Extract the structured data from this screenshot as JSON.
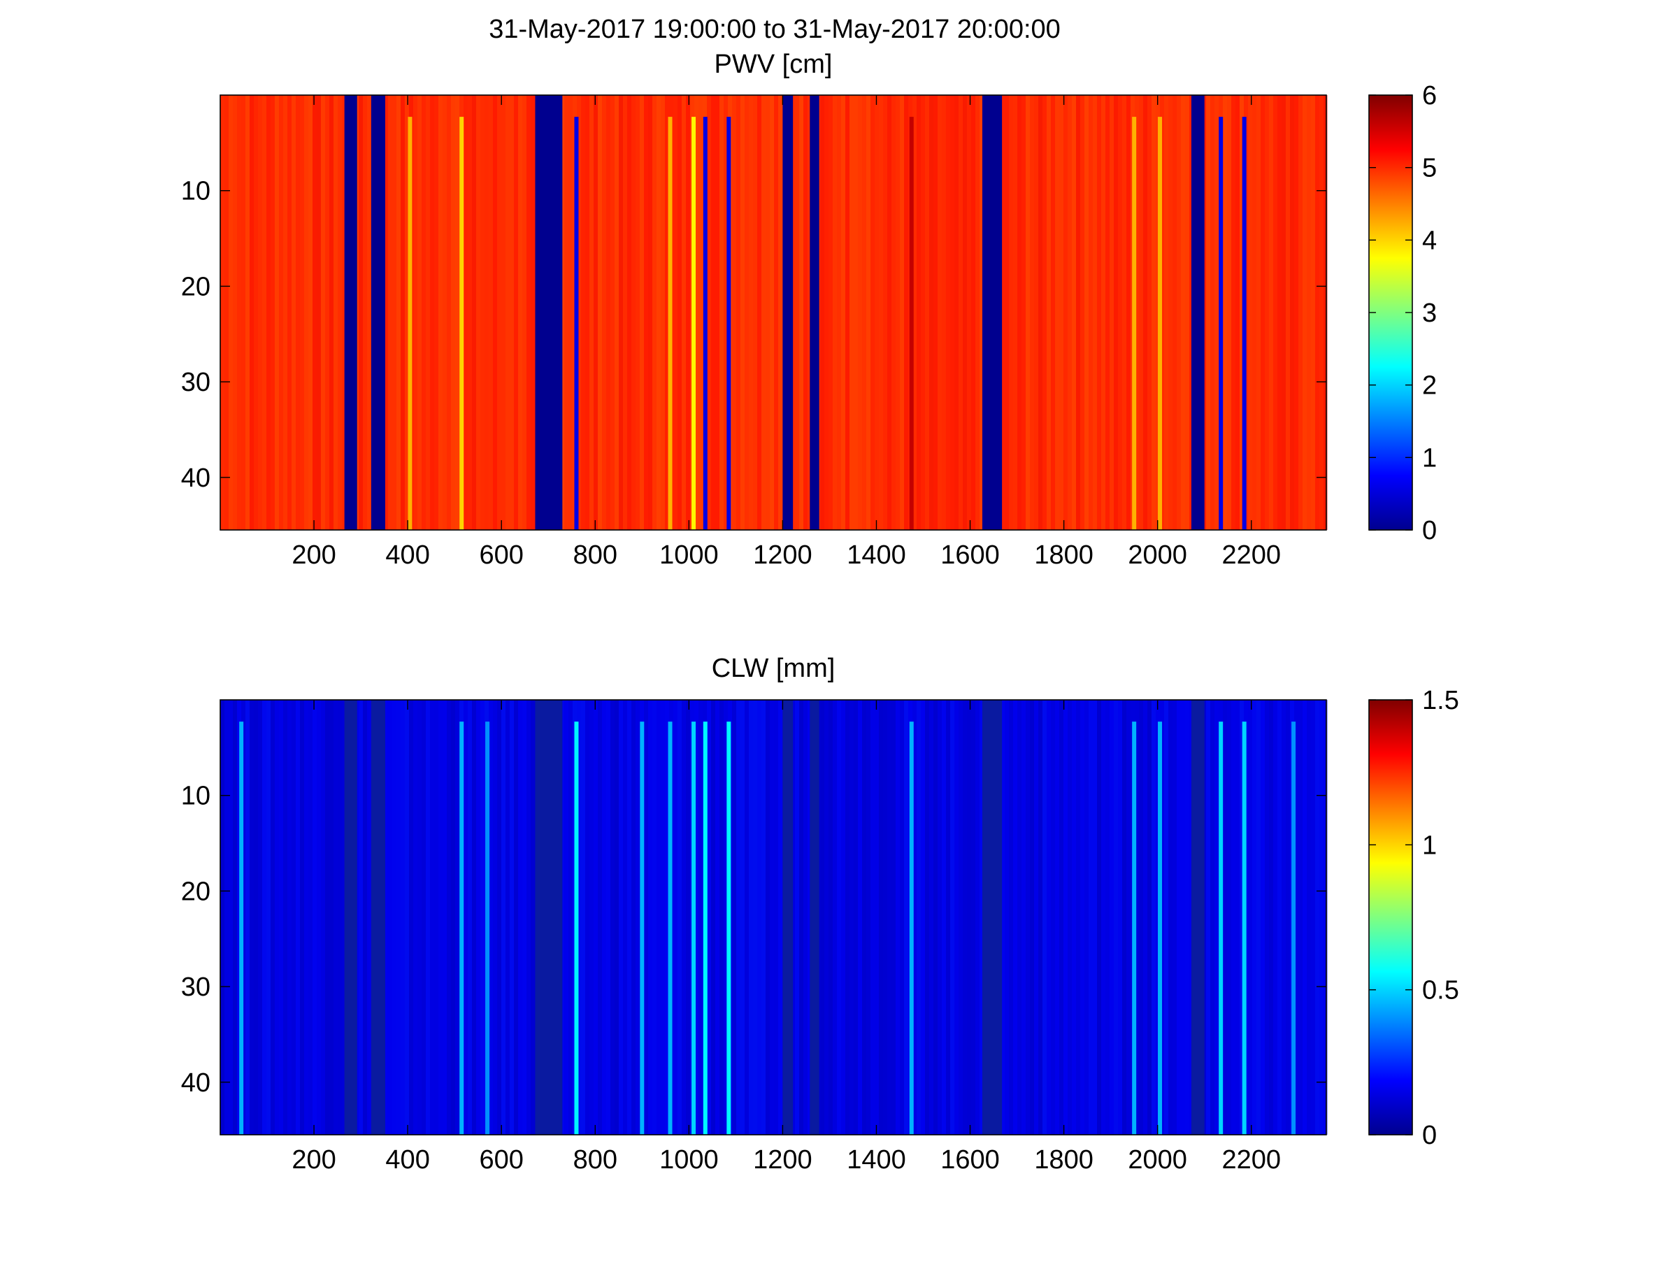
{
  "figure": {
    "title": "31-May-2017 19:00:00 to 31-May-2017 20:00:00"
  },
  "chart_data": [
    {
      "type": "heatmap",
      "title": "PWV [cm]",
      "xlabel": "",
      "ylabel": "",
      "xlim": [
        0,
        2360
      ],
      "ylim": [
        0,
        45.5
      ],
      "y_reversed": true,
      "x_ticks": [
        "200",
        "400",
        "600",
        "800",
        "1000",
        "1200",
        "1400",
        "1600",
        "1800",
        "2000",
        "2200"
      ],
      "y_ticks": [
        "10",
        "20",
        "30",
        "40"
      ],
      "colorbar": {
        "range": [
          0,
          6
        ],
        "ticks": [
          "0",
          "1",
          "2",
          "3",
          "4",
          "5",
          "6"
        ],
        "colormap": "jet"
      },
      "background_value": 5.0,
      "gaps": [
        [
          265,
          292
        ],
        [
          322,
          352
        ],
        [
          672,
          730
        ],
        [
          1200,
          1222
        ],
        [
          1258,
          1278
        ],
        [
          1626,
          1668
        ],
        [
          2072,
          2100
        ]
      ],
      "streaks": [
        {
          "x": 405,
          "value": 4.2
        },
        {
          "x": 515,
          "value": 4.0
        },
        {
          "x": 760,
          "value": 0.6
        },
        {
          "x": 960,
          "value": 4.2
        },
        {
          "x": 1010,
          "value": 3.8
        },
        {
          "x": 1035,
          "value": 0.6
        },
        {
          "x": 1085,
          "value": 0.6
        },
        {
          "x": 1475,
          "value": 5.6
        },
        {
          "x": 1950,
          "value": 4.2
        },
        {
          "x": 2005,
          "value": 4.2
        },
        {
          "x": 2135,
          "value": 0.6
        },
        {
          "x": 2185,
          "value": 0.6
        }
      ]
    },
    {
      "type": "heatmap",
      "title": "CLW [mm]",
      "xlabel": "",
      "ylabel": "",
      "xlim": [
        0,
        2360
      ],
      "ylim": [
        0,
        45.5
      ],
      "y_reversed": true,
      "x_ticks": [
        "200",
        "400",
        "600",
        "800",
        "1000",
        "1200",
        "1400",
        "1600",
        "1800",
        "2000",
        "2200"
      ],
      "y_ticks": [
        "10",
        "20",
        "30",
        "40"
      ],
      "colorbar": {
        "range": [
          0,
          1.5
        ],
        "ticks": [
          "0",
          "0.5",
          "1",
          "1.5"
        ],
        "colormap": "jet"
      },
      "background_value": 0.15,
      "gaps": [
        [
          265,
          292
        ],
        [
          322,
          352
        ],
        [
          672,
          730
        ],
        [
          1200,
          1222
        ],
        [
          1258,
          1278
        ],
        [
          1626,
          1668
        ],
        [
          2072,
          2100
        ]
      ],
      "streaks": [
        {
          "x": 45,
          "value": 0.45
        },
        {
          "x": 515,
          "value": 0.45
        },
        {
          "x": 570,
          "value": 0.4
        },
        {
          "x": 760,
          "value": 0.55
        },
        {
          "x": 900,
          "value": 0.45
        },
        {
          "x": 960,
          "value": 0.45
        },
        {
          "x": 1010,
          "value": 0.5
        },
        {
          "x": 1035,
          "value": 0.55
        },
        {
          "x": 1085,
          "value": 0.55
        },
        {
          "x": 1475,
          "value": 0.45
        },
        {
          "x": 1950,
          "value": 0.45
        },
        {
          "x": 2005,
          "value": 0.45
        },
        {
          "x": 2135,
          "value": 0.5
        },
        {
          "x": 2185,
          "value": 0.5
        },
        {
          "x": 2290,
          "value": 0.4
        }
      ]
    }
  ]
}
